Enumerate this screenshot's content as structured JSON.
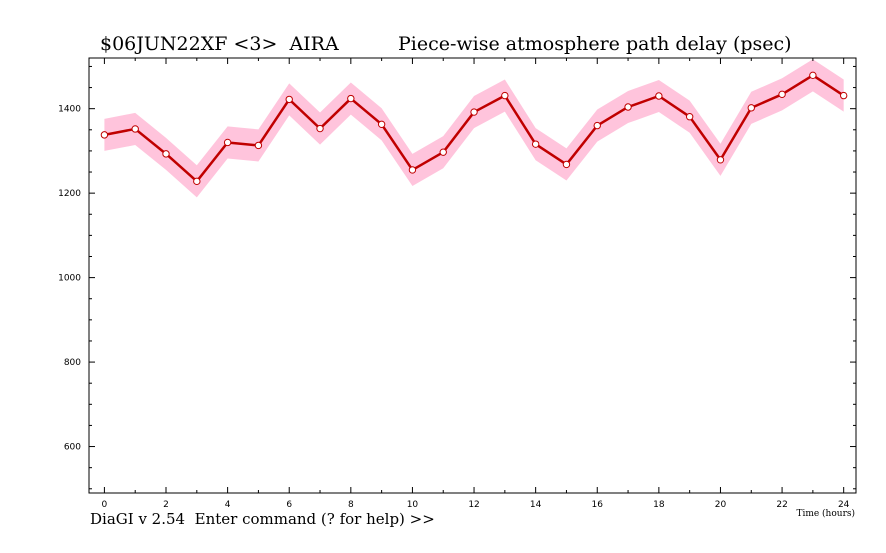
{
  "header": {
    "experiment": "$06JUN22XF <3>  AIRA",
    "plot_title": "Piece-wise atmosphere path delay (psec)"
  },
  "footer": {
    "prompt": "DiaGI v 2.54  Enter command (? for help) >>"
  },
  "colors": {
    "line": "#c00000",
    "band": "#ffc4dc",
    "marker_fill": "#ffffff"
  },
  "chart_data": {
    "type": "line",
    "title": "Piece-wise atmosphere path delay (psec)",
    "xlabel": "Time (hours)",
    "ylabel": "",
    "xlim": [
      -0.5,
      24.4
    ],
    "ylim": [
      490,
      1520
    ],
    "xticks": [
      0,
      2,
      4,
      6,
      8,
      10,
      12,
      14,
      16,
      18,
      20,
      22,
      24
    ],
    "yticks": [
      600,
      800,
      1000,
      1200,
      1400
    ],
    "grid": false,
    "series": [
      {
        "x": [
          0,
          1,
          2,
          3,
          4,
          5,
          6,
          7,
          8,
          9,
          10,
          11,
          12,
          13,
          14,
          15,
          16,
          17,
          18,
          19,
          20,
          21,
          22,
          23,
          24
        ],
        "values": [
          1338,
          1352,
          1293,
          1228,
          1320,
          1313,
          1422,
          1353,
          1424,
          1363,
          1255,
          1297,
          1392,
          1431,
          1316,
          1268,
          1360,
          1404,
          1430,
          1381,
          1279,
          1402,
          1434,
          1479,
          1431
        ],
        "error": [
          38,
          38,
          38,
          38,
          38,
          38,
          38,
          38,
          38,
          38,
          38,
          38,
          38,
          38,
          38,
          38,
          38,
          38,
          38,
          38,
          38,
          38,
          38,
          38,
          38
        ]
      }
    ]
  }
}
